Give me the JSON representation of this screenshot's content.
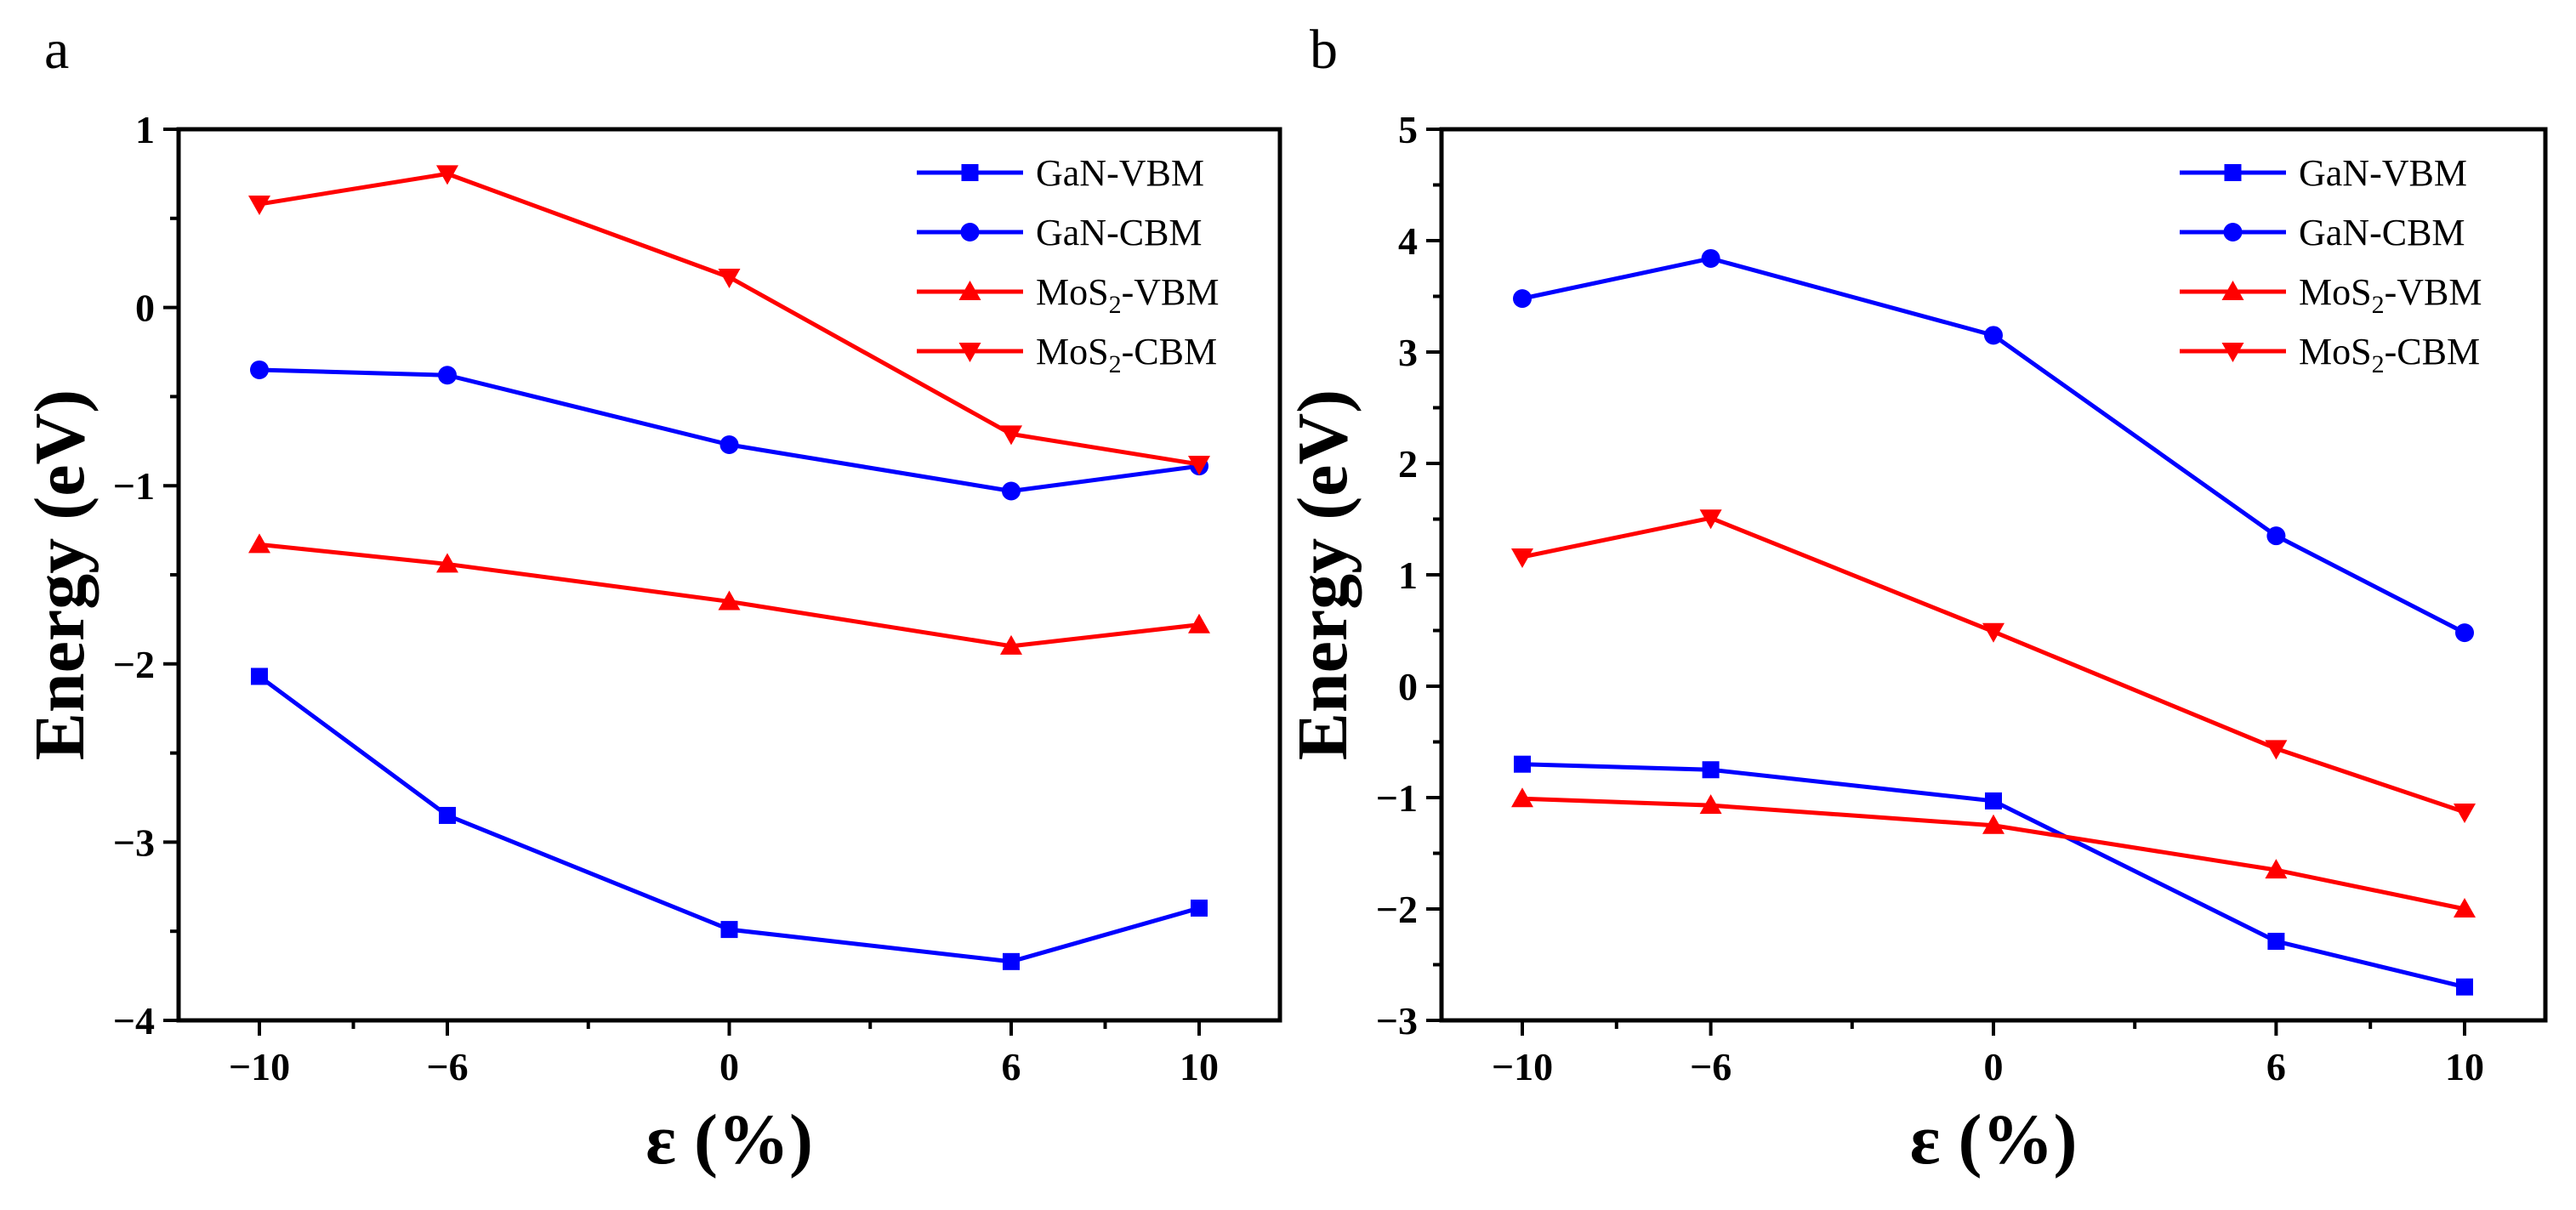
{
  "chart_data": [
    {
      "panel": "a",
      "type": "line",
      "xlabel": "ε (%)",
      "ylabel": "Energy (eV)",
      "x": [
        -10,
        -6,
        0,
        6,
        10
      ],
      "x_ticks": [
        "−10",
        "−6",
        "0",
        "6",
        "10"
      ],
      "ylim": [
        -4,
        1
      ],
      "y_ticks": [
        1,
        0,
        -1,
        -2,
        -3,
        -4
      ],
      "y_tick_labels": [
        "1",
        "0",
        "−1",
        "−2",
        "−3",
        "−4"
      ],
      "legend_position": "top-right",
      "series": [
        {
          "name": "GaN-VBM",
          "label_main": "GaN-VBM",
          "label_sub": "",
          "label_tail": "",
          "color": "#0000ff",
          "marker": "square",
          "values": [
            -2.07,
            -2.85,
            -3.49,
            -3.67,
            -3.37
          ]
        },
        {
          "name": "GaN-CBM",
          "label_main": "GaN-CBM",
          "label_sub": "",
          "label_tail": "",
          "color": "#0000ff",
          "marker": "circle",
          "values": [
            -0.35,
            -0.38,
            -0.77,
            -1.03,
            -0.89
          ]
        },
        {
          "name": "MoS2-VBM",
          "label_main": "MoS",
          "label_sub": "2",
          "label_tail": "-VBM",
          "color": "#ff0000",
          "marker": "triangle-up",
          "values": [
            -1.33,
            -1.44,
            -1.65,
            -1.9,
            -1.78
          ]
        },
        {
          "name": "MoS2-CBM",
          "label_main": "MoS",
          "label_sub": "2",
          "label_tail": "-CBM",
          "color": "#ff0000",
          "marker": "triangle-down",
          "values": [
            0.58,
            0.75,
            0.17,
            -0.71,
            -0.88
          ]
        }
      ]
    },
    {
      "panel": "b",
      "type": "line",
      "xlabel": "ε (%)",
      "ylabel": "Energy (eV)",
      "x": [
        -10,
        -6,
        0,
        6,
        10
      ],
      "x_ticks": [
        "−10",
        "−6",
        "0",
        "6",
        "10"
      ],
      "ylim": [
        -3,
        5
      ],
      "y_ticks": [
        5,
        4,
        3,
        2,
        1,
        0,
        -1,
        -2,
        -3
      ],
      "y_tick_labels": [
        "5",
        "4",
        "3",
        "2",
        "1",
        "0",
        "−1",
        "−2",
        "−3"
      ],
      "legend_position": "top-right",
      "series": [
        {
          "name": "GaN-VBM",
          "label_main": "GaN-VBM",
          "label_sub": "",
          "label_tail": "",
          "color": "#0000ff",
          "marker": "square",
          "values": [
            -0.7,
            -0.75,
            -1.03,
            -2.29,
            -2.7
          ]
        },
        {
          "name": "GaN-CBM",
          "label_main": "GaN-CBM",
          "label_sub": "",
          "label_tail": "",
          "color": "#0000ff",
          "marker": "circle",
          "values": [
            3.48,
            3.84,
            3.15,
            1.35,
            0.48
          ]
        },
        {
          "name": "MoS2-VBM",
          "label_main": "MoS",
          "label_sub": "2",
          "label_tail": "-VBM",
          "color": "#ff0000",
          "marker": "triangle-up",
          "values": [
            -1.01,
            -1.07,
            -1.25,
            -1.65,
            -2.0
          ]
        },
        {
          "name": "MoS2-CBM",
          "label_main": "MoS",
          "label_sub": "2",
          "label_tail": "-CBM",
          "color": "#ff0000",
          "marker": "triangle-down",
          "values": [
            1.16,
            1.51,
            0.49,
            -0.56,
            -1.13
          ]
        }
      ]
    }
  ]
}
